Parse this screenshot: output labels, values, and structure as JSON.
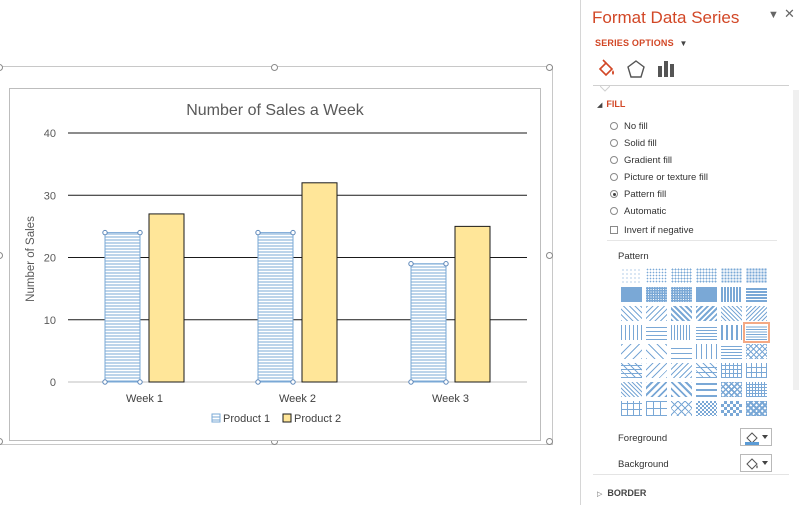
{
  "chart_data": {
    "type": "bar",
    "title": "Number of Sales a Week",
    "xlabel": "",
    "ylabel": "Number of Sales",
    "categories": [
      "Week 1",
      "Week 2",
      "Week 3"
    ],
    "series": [
      {
        "name": "Product 1",
        "values": [
          24,
          24,
          19
        ],
        "color": "#5b9bd5",
        "fill": "pattern-horizontal-lines"
      },
      {
        "name": "Product 2",
        "values": [
          27,
          32,
          25
        ],
        "color": "#ffe699",
        "fill": "solid"
      }
    ],
    "ylim": [
      0,
      40
    ],
    "yticks": [
      0,
      10,
      20,
      30,
      40
    ],
    "grid": true,
    "legend": "bottom"
  },
  "pane": {
    "title": "Format Data Series",
    "series_options": "SERIES OPTIONS",
    "fill_section": "FILL",
    "fill_options": [
      {
        "label": "No fill",
        "checked": false
      },
      {
        "label": "Solid fill",
        "checked": false
      },
      {
        "label": "Gradient fill",
        "checked": false
      },
      {
        "label": "Picture or texture fill",
        "checked": false
      },
      {
        "label": "Pattern fill",
        "checked": true
      },
      {
        "label": "Automatic",
        "checked": false
      }
    ],
    "invert_label": "Invert if negative",
    "pattern_label": "Pattern",
    "selected_pattern": 23,
    "foreground_label": "Foreground",
    "background_label": "Background",
    "border_section": "BORDER",
    "accent_color": "#d24726"
  }
}
